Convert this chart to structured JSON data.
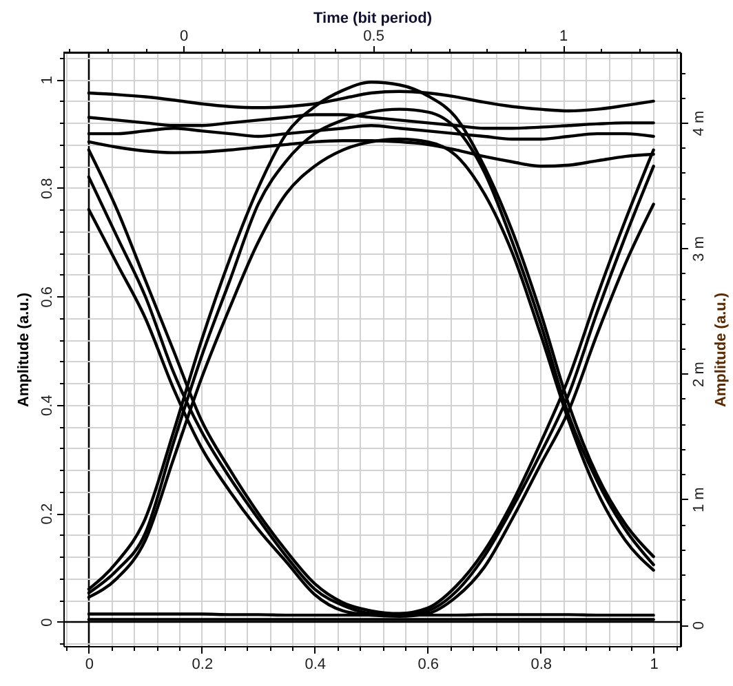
{
  "chart_data": {
    "type": "line",
    "ylabel": "Amplitude (a.u.)",
    "y2label": "Amplitude (a.u.)",
    "x2label": "Time (bit period)",
    "xlim": [
      -0.045,
      1.048
    ],
    "ylim": [
      -0.045,
      1.05
    ],
    "x2lim": [
      -0.316,
      1.31
    ],
    "y2lim": [
      -0.17,
      4.56
    ],
    "xticks": [
      {
        "value": -0.04,
        "label": null
      },
      0,
      {
        "value": 0.04,
        "label": null
      },
      {
        "value": 0.08,
        "label": null
      },
      {
        "value": 0.12,
        "label": null
      },
      {
        "value": 0.16,
        "label": null
      },
      0.2,
      {
        "value": 0.24,
        "label": null
      },
      {
        "value": 0.28,
        "label": null
      },
      {
        "value": 0.32,
        "label": null
      },
      {
        "value": 0.36,
        "label": null
      },
      0.4,
      {
        "value": 0.44,
        "label": null
      },
      {
        "value": 0.48,
        "label": null
      },
      {
        "value": 0.52,
        "label": null
      },
      {
        "value": 0.56,
        "label": null
      },
      0.6,
      {
        "value": 0.64,
        "label": null
      },
      {
        "value": 0.68,
        "label": null
      },
      {
        "value": 0.72,
        "label": null
      },
      {
        "value": 0.76,
        "label": null
      },
      0.8,
      {
        "value": 0.84,
        "label": null
      },
      {
        "value": 0.88,
        "label": null
      },
      {
        "value": 0.92,
        "label": null
      },
      {
        "value": 0.96,
        "label": null
      },
      1,
      {
        "value": 1.04,
        "label": null
      }
    ],
    "yticks": [
      {
        "value": -0.04,
        "label": null
      },
      0,
      {
        "value": 0.04,
        "label": null
      },
      {
        "value": 0.08,
        "label": null
      },
      {
        "value": 0.12,
        "label": null
      },
      {
        "value": 0.16,
        "label": null
      },
      0.2,
      {
        "value": 0.24,
        "label": null
      },
      {
        "value": 0.28,
        "label": null
      },
      {
        "value": 0.32,
        "label": null
      },
      {
        "value": 0.36,
        "label": null
      },
      0.4,
      {
        "value": 0.44,
        "label": null
      },
      {
        "value": 0.48,
        "label": null
      },
      {
        "value": 0.52,
        "label": null
      },
      {
        "value": 0.56,
        "label": null
      },
      0.6,
      {
        "value": 0.64,
        "label": null
      },
      {
        "value": 0.68,
        "label": null
      },
      {
        "value": 0.72,
        "label": null
      },
      {
        "value": 0.76,
        "label": null
      },
      0.8,
      {
        "value": 0.84,
        "label": null
      },
      {
        "value": 0.88,
        "label": null
      },
      {
        "value": 0.92,
        "label": null
      },
      {
        "value": 0.96,
        "label": null
      },
      1,
      {
        "value": 1.04,
        "label": null
      }
    ],
    "x2ticks": [
      {
        "value": -0.3,
        "label": null
      },
      {
        "value": -0.2,
        "label": null
      },
      {
        "value": -0.1,
        "label": null
      },
      0,
      {
        "value": 0.1,
        "label": null
      },
      {
        "value": 0.2,
        "label": null
      },
      {
        "value": 0.3,
        "label": null
      },
      {
        "value": 0.4,
        "label": null
      },
      0.5,
      {
        "value": 0.6,
        "label": null
      },
      {
        "value": 0.7,
        "label": null
      },
      {
        "value": 0.8,
        "label": null
      },
      {
        "value": 0.9,
        "label": null
      },
      1,
      {
        "value": 1.1,
        "label": null
      },
      {
        "value": 1.2,
        "label": null
      },
      {
        "value": 1.3,
        "label": null
      }
    ],
    "y2ticks": [
      0,
      {
        "value": 0.2,
        "label": null
      },
      {
        "value": 0.4,
        "label": null
      },
      {
        "value": 0.6,
        "label": null
      },
      {
        "value": 0.8,
        "label": null
      },
      {
        "value": 1,
        "label": "1 m"
      },
      {
        "value": 1.2,
        "label": null
      },
      {
        "value": 1.4,
        "label": null
      },
      {
        "value": 1.6,
        "label": null
      },
      {
        "value": 1.8,
        "label": null
      },
      {
        "value": 2,
        "label": "2 m"
      },
      {
        "value": 2.2,
        "label": null
      },
      {
        "value": 2.4,
        "label": null
      },
      {
        "value": 2.6,
        "label": null
      },
      {
        "value": 2.8,
        "label": null
      },
      {
        "value": 3,
        "label": "3 m"
      },
      {
        "value": 3.2,
        "label": null
      },
      {
        "value": 3.4,
        "label": null
      },
      {
        "value": 3.6,
        "label": null
      },
      {
        "value": 3.8,
        "label": null
      },
      {
        "value": 4,
        "label": "4 m"
      },
      {
        "value": 4.2,
        "label": null
      },
      {
        "value": 4.4,
        "label": null
      }
    ],
    "grid": true,
    "x": [
      0,
      0.05,
      0.1,
      0.15,
      0.2,
      0.25,
      0.3,
      0.35,
      0.4,
      0.45,
      0.5,
      0.55,
      0.6,
      0.65,
      0.7,
      0.75,
      0.8,
      0.85,
      0.9,
      0.95,
      1
    ],
    "series": [
      {
        "color": "#000000",
        "values": [
          0.975,
          0.972,
          0.968,
          0.962,
          0.955,
          0.95,
          0.948,
          0.95,
          0.955,
          0.965,
          0.975,
          0.978,
          0.975,
          0.968,
          0.958,
          0.95,
          0.945,
          0.942,
          0.945,
          0.952,
          0.96
        ]
      },
      {
        "color": "#000000",
        "values": [
          0.93,
          0.925,
          0.92,
          0.915,
          0.915,
          0.92,
          0.925,
          0.93,
          0.935,
          0.935,
          0.93,
          0.925,
          0.92,
          0.915,
          0.91,
          0.91,
          0.912,
          0.915,
          0.918,
          0.92,
          0.92
        ]
      },
      {
        "color": "#000000",
        "values": [
          0.9,
          0.9,
          0.905,
          0.91,
          0.905,
          0.9,
          0.895,
          0.9,
          0.905,
          0.91,
          0.915,
          0.91,
          0.905,
          0.9,
          0.895,
          0.89,
          0.89,
          0.895,
          0.9,
          0.9,
          0.895
        ]
      },
      {
        "color": "#000000",
        "values": [
          0.885,
          0.875,
          0.868,
          0.865,
          0.866,
          0.87,
          0.875,
          0.88,
          0.885,
          0.887,
          0.887,
          0.885,
          0.88,
          0.87,
          0.858,
          0.848,
          0.84,
          0.842,
          0.85,
          0.858,
          0.862
        ]
      },
      {
        "color": "#000000",
        "values": [
          0.06,
          0.11,
          0.19,
          0.35,
          0.52,
          0.67,
          0.8,
          0.9,
          0.95,
          0.98,
          0.995,
          0.99,
          0.97,
          0.93,
          0.84,
          0.72,
          0.57,
          0.4,
          0.27,
          0.18,
          0.12
        ]
      },
      {
        "color": "#000000",
        "values": [
          0.053,
          0.095,
          0.163,
          0.33,
          0.49,
          0.63,
          0.77,
          0.85,
          0.9,
          0.925,
          0.94,
          0.945,
          0.94,
          0.91,
          0.83,
          0.7,
          0.55,
          0.38,
          0.26,
          0.17,
          0.105
        ]
      },
      {
        "color": "#000000",
        "values": [
          0.045,
          0.08,
          0.15,
          0.3,
          0.45,
          0.58,
          0.7,
          0.79,
          0.84,
          0.87,
          0.885,
          0.89,
          0.885,
          0.86,
          0.79,
          0.68,
          0.53,
          0.37,
          0.24,
          0.15,
          0.095
        ]
      },
      {
        "color": "#000000",
        "values": [
          0.87,
          0.76,
          0.63,
          0.5,
          0.37,
          0.28,
          0.2,
          0.13,
          0.07,
          0.035,
          0.02,
          0.015,
          0.025,
          0.065,
          0.13,
          0.22,
          0.33,
          0.45,
          0.6,
          0.74,
          0.87
        ]
      },
      {
        "color": "#000000",
        "values": [
          0.82,
          0.71,
          0.6,
          0.46,
          0.35,
          0.265,
          0.19,
          0.12,
          0.06,
          0.03,
          0.015,
          0.012,
          0.02,
          0.055,
          0.12,
          0.21,
          0.31,
          0.42,
          0.57,
          0.71,
          0.84
        ]
      },
      {
        "color": "#000000",
        "values": [
          0.76,
          0.66,
          0.56,
          0.43,
          0.32,
          0.24,
          0.17,
          0.11,
          0.05,
          0.02,
          0.012,
          0.01,
          0.015,
          0.045,
          0.1,
          0.19,
          0.29,
          0.39,
          0.53,
          0.66,
          0.77
        ]
      },
      {
        "color": "#000000",
        "values": [
          0.014,
          0.014,
          0.014,
          0.014,
          0.014,
          0.013,
          0.013,
          0.012,
          0.012,
          0.012,
          0.012,
          0.012,
          0.012,
          0.012,
          0.013,
          0.013,
          0.013,
          0.013,
          0.012,
          0.012,
          0.012
        ]
      },
      {
        "color": "#000000",
        "values": [
          0.004,
          0.004,
          0.004,
          0.004,
          0.004,
          0.004,
          0.004,
          0.004,
          0.004,
          0.004,
          0.004,
          0.004,
          0.004,
          0.004,
          0.004,
          0.004,
          0.004,
          0.004,
          0.004,
          0.004,
          0.004
        ]
      }
    ]
  }
}
